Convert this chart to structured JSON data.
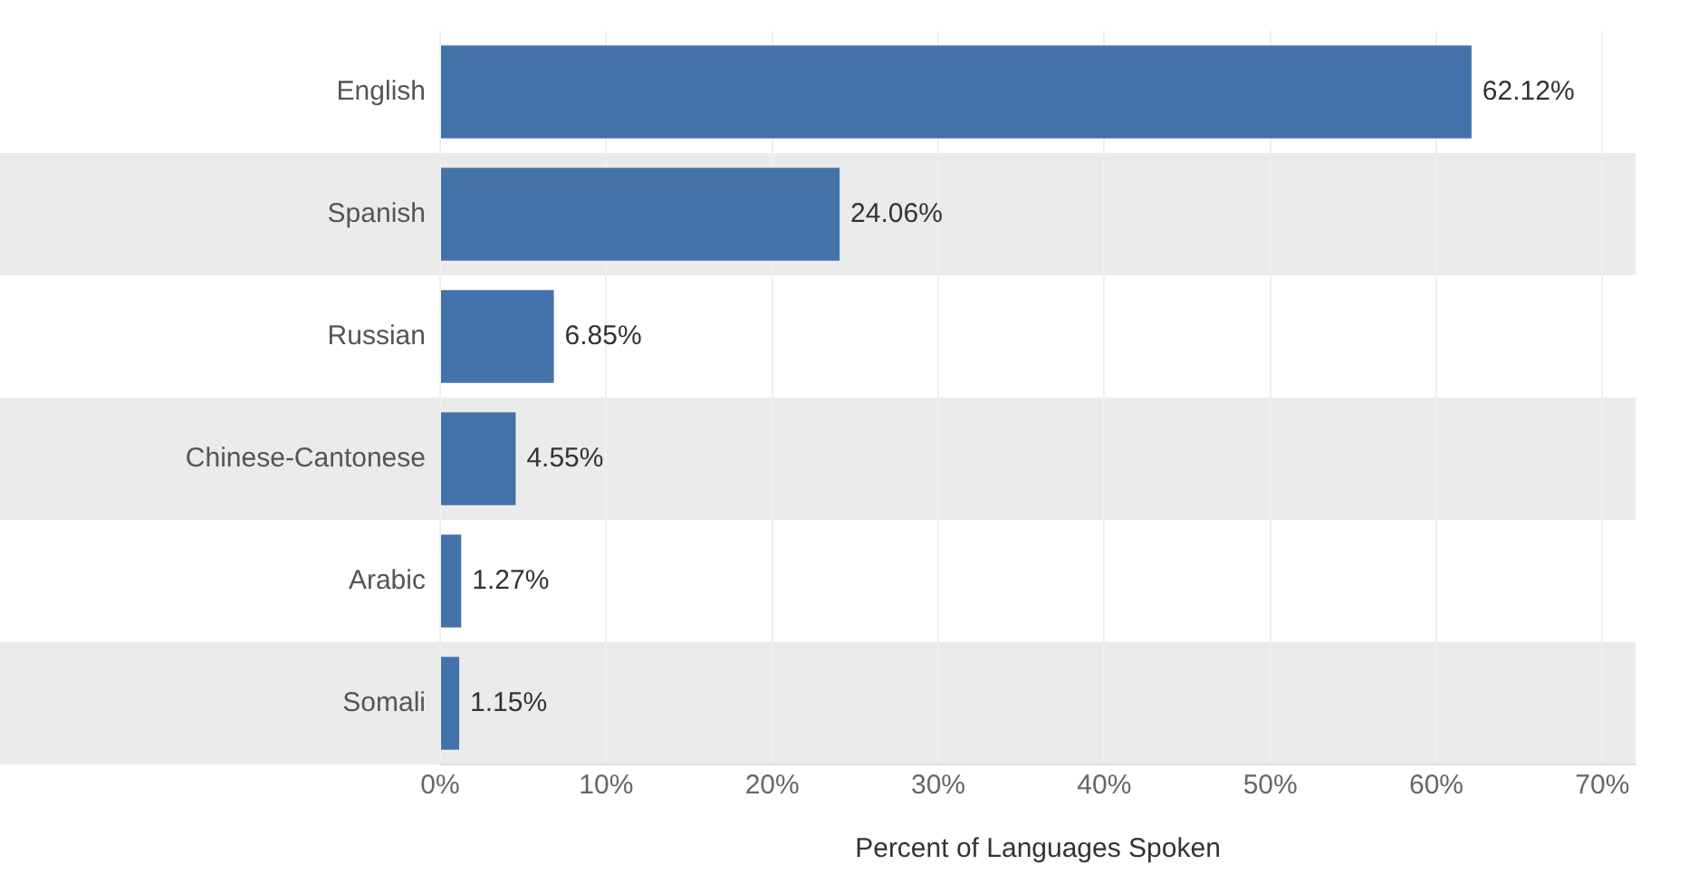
{
  "chart_data": {
    "type": "bar",
    "orientation": "horizontal",
    "xlabel": "Percent of Languages Spoken",
    "categories": [
      "English",
      "Spanish",
      "Russian",
      "Chinese-Cantonese",
      "Arabic",
      "Somali"
    ],
    "values": [
      62.12,
      24.06,
      6.85,
      4.55,
      1.27,
      1.15
    ],
    "value_labels": [
      "62.12%",
      "24.06%",
      "6.85%",
      "4.55%",
      "1.27%",
      "1.15%"
    ],
    "color": "#4472ab",
    "xlim": [
      0,
      72
    ],
    "xticks": [
      {
        "value": 0,
        "label": "0%"
      },
      {
        "value": 10,
        "label": "10%"
      },
      {
        "value": 20,
        "label": "20%"
      },
      {
        "value": 30,
        "label": "30%"
      },
      {
        "value": 40,
        "label": "40%"
      },
      {
        "value": 50,
        "label": "50%"
      },
      {
        "value": 60,
        "label": "60%"
      },
      {
        "value": 70,
        "label": "70%"
      }
    ],
    "grid": "x",
    "legend": false
  }
}
